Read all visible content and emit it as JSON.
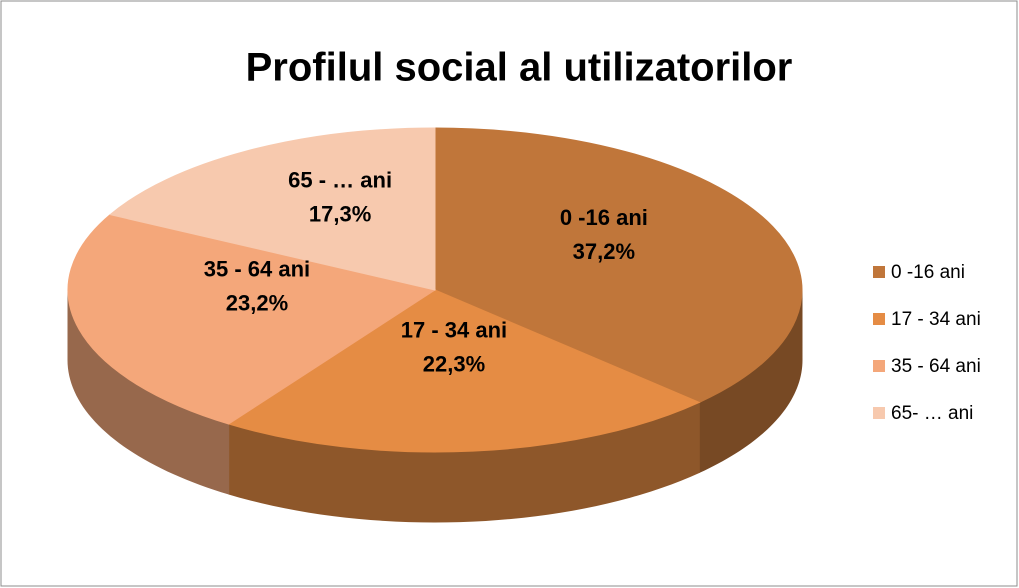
{
  "chart_data": {
    "type": "pie",
    "title": "Profilul social al utilizatorilor",
    "categories": [
      "0 -16 ani",
      "17 - 34 ani",
      "35 - 64 ani",
      "65- … ani"
    ],
    "data_label_names": [
      "0 -16 ani",
      "17 - 34 ani",
      "35 - 64 ani",
      "65 - … ani"
    ],
    "values": [
      37.2,
      22.3,
      23.2,
      17.3
    ],
    "value_labels": [
      "37,2%",
      "22,3%",
      "23,2%",
      "17,3%"
    ],
    "colors": [
      "#c0763a",
      "#e58c44",
      "#f4a77a",
      "#f7c9ae"
    ],
    "legend": "right"
  }
}
